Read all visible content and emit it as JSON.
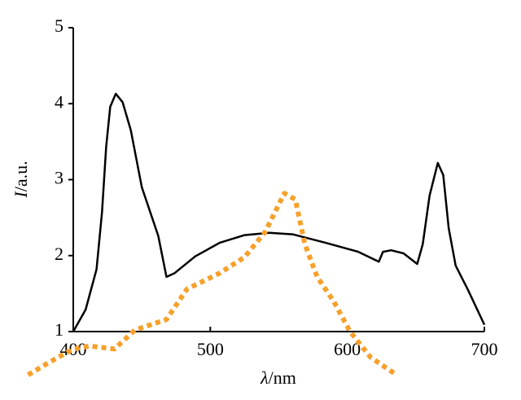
{
  "chart_data": {
    "type": "line",
    "xlabel_symbol": "λ",
    "xlabel_unit": "/nm",
    "ylabel_symbol": "I",
    "ylabel_unit": "/a.u.",
    "xlim": [
      400,
      700
    ],
    "xticks": [
      400,
      500,
      600,
      700
    ],
    "ylim": [
      1,
      5
    ],
    "yticks": [
      1,
      2,
      3,
      4,
      5
    ],
    "series": [
      {
        "color": "#000000",
        "style": "solid",
        "x": [
          400,
          409,
          417,
          421,
          424,
          427,
          431,
          436,
          442,
          450,
          462,
          468,
          474,
          489,
          507,
          525,
          543,
          560,
          584,
          608,
          623,
          626,
          632,
          641,
          651,
          655,
          660,
          666,
          670,
          674,
          679,
          688,
          700
        ],
        "values": [
          1.0,
          1.29,
          1.82,
          2.57,
          3.43,
          3.96,
          4.13,
          4.02,
          3.65,
          2.9,
          2.26,
          1.72,
          1.77,
          1.99,
          2.17,
          2.27,
          2.3,
          2.28,
          2.17,
          2.05,
          1.92,
          2.05,
          2.07,
          2.03,
          1.89,
          2.15,
          2.79,
          3.22,
          3.06,
          2.36,
          1.87,
          1.55,
          1.09
        ]
      },
      {
        "color": "#f7a02a",
        "style": "dotted",
        "x": [
          367,
          382,
          400,
          412,
          430,
          445,
          468,
          483,
          507,
          525,
          540,
          554,
          562,
          569,
          578,
          590,
          602,
          617,
          636
        ],
        "values": [
          0.43,
          0.59,
          0.77,
          0.81,
          0.77,
          1.02,
          1.16,
          1.56,
          1.77,
          1.98,
          2.31,
          2.82,
          2.74,
          2.15,
          1.72,
          1.4,
          1.0,
          0.66,
          0.43
        ]
      }
    ]
  }
}
